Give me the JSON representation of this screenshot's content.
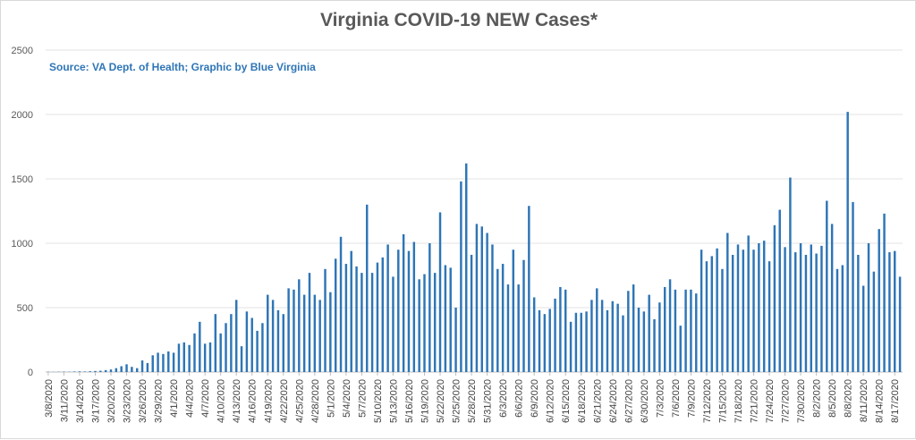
{
  "chart_data": {
    "type": "bar",
    "title": "Virginia COVID-19 NEW Cases*",
    "subtitle": "Source: VA Dept. of Health; Graphic by Blue Virginia",
    "xlabel": "",
    "ylabel": "",
    "ylim": [
      0,
      2500
    ],
    "yticks": [
      0,
      500,
      1000,
      1500,
      2000,
      2500
    ],
    "grid": true,
    "legend": "none",
    "bar_color": "#2e75b6",
    "start_date": "2020-03-08",
    "end_date": "2020-08-17",
    "x_tick_labels": [
      "3/8/2020",
      "3/11/2020",
      "3/14/2020",
      "3/17/2020",
      "3/20/2020",
      "3/23/2020",
      "3/26/2020",
      "3/29/2020",
      "4/1/2020",
      "4/4/2020",
      "4/7/2020",
      "4/10/2020",
      "4/13/2020",
      "4/16/2020",
      "4/19/2020",
      "4/22/2020",
      "4/25/2020",
      "4/28/2020",
      "5/1/2020",
      "5/4/2020",
      "5/7/2020",
      "5/10/2020",
      "5/13/2020",
      "5/16/2020",
      "5/19/2020",
      "5/22/2020",
      "5/25/2020",
      "5/28/2020",
      "5/31/2020",
      "6/3/2020",
      "6/6/2020",
      "6/9/2020",
      "6/12/2020",
      "6/15/2020",
      "6/18/2020",
      "6/21/2020",
      "6/24/2020",
      "6/27/2020",
      "6/30/2020",
      "7/3/2020",
      "7/6/2020",
      "7/9/2020",
      "7/12/2020",
      "7/15/2020",
      "7/18/2020",
      "7/21/2020",
      "7/24/2020",
      "7/27/2020",
      "7/30/2020",
      "8/2/2020",
      "8/5/2020",
      "8/8/2020",
      "8/11/2020",
      "8/14/2020",
      "8/17/2020"
    ],
    "values": [
      2,
      1,
      2,
      3,
      2,
      4,
      5,
      4,
      6,
      8,
      10,
      15,
      20,
      30,
      45,
      60,
      40,
      30,
      90,
      70,
      130,
      150,
      140,
      160,
      150,
      220,
      230,
      210,
      300,
      390,
      220,
      230,
      450,
      300,
      380,
      450,
      560,
      200,
      470,
      420,
      320,
      380,
      600,
      560,
      480,
      450,
      650,
      640,
      720,
      600,
      770,
      600,
      560,
      800,
      620,
      880,
      1050,
      840,
      940,
      820,
      770,
      1300,
      770,
      850,
      890,
      990,
      740,
      950,
      1070,
      940,
      1010,
      720,
      760,
      1000,
      770,
      1240,
      830,
      810,
      500,
      1480,
      1620,
      910,
      1150,
      1130,
      1080,
      990,
      800,
      840,
      680,
      950,
      680,
      870,
      1290,
      580,
      480,
      450,
      490,
      570,
      660,
      640,
      390,
      460,
      460,
      470,
      560,
      650,
      560,
      480,
      550,
      530,
      440,
      630,
      680,
      500,
      470,
      600,
      410,
      540,
      660,
      720,
      640,
      360,
      640,
      640,
      610,
      950,
      860,
      900,
      960,
      800,
      1080,
      910,
      990,
      950,
      1060,
      950,
      1000,
      1020,
      860,
      1140,
      1260,
      970,
      1510,
      930,
      1000,
      910,
      990,
      920,
      980,
      1330,
      1150,
      800,
      830,
      2020,
      1320,
      910,
      670,
      1000,
      780,
      1110,
      1230,
      930,
      940,
      740
    ]
  }
}
